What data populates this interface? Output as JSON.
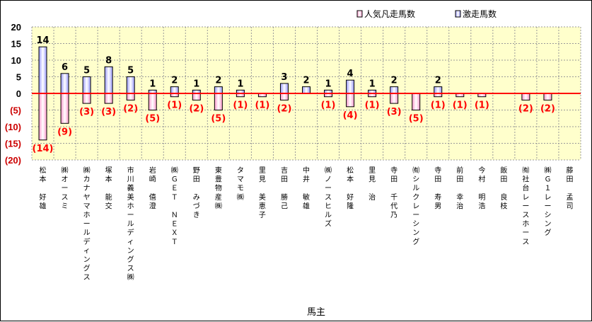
{
  "chart_data": {
    "type": "bar",
    "xlabel": "馬主",
    "ylim": [
      -20,
      20
    ],
    "yticks": [
      "20",
      "15",
      "10",
      "5",
      "0",
      "(5)",
      "(10)",
      "(15)",
      "(20)"
    ],
    "grid": true,
    "legend_position": "top-right",
    "categories": [
      "松本　好雄",
      "㈱オースミ",
      "㈱カナヤマホールディングス",
      "塚本　能交",
      "市川義美ホールディングス㈱",
      "岩崎　僖澄",
      "㈱ＧＥＴ　ＮＥＸＴ",
      "野田　みづき",
      "東豊物産㈱",
      "タマモ㈱",
      "里見　美恵子",
      "吉田　勝己",
      "中井　敏雄",
      "㈱ノースヒルズ",
      "松本　好隆",
      "里見　治",
      "寺田　千代乃",
      "㈲シルクレーシング",
      "寺田　寿男",
      "前田　幸治",
      "今村　明浩",
      "飯田　良枝",
      "㈲社台レースホース",
      "㈱Ｇ１レーシング",
      "藤田　孟司"
    ],
    "series": [
      {
        "name": "人気凡走馬数",
        "color": "#ff99cc",
        "values": [
          -14,
          -9,
          -3,
          -3,
          -2,
          -5,
          -1,
          -2,
          -5,
          -1,
          -1,
          -2,
          0,
          -1,
          -4,
          -1,
          -3,
          -5,
          -1,
          -1,
          -1,
          0,
          -2,
          -2,
          0
        ],
        "labels": [
          "(14)",
          "(9)",
          "(3)",
          "(3)",
          "(2)",
          "(5)",
          "(1)",
          "(2)",
          "(5)",
          "(1)",
          "(1)",
          "(2)",
          "",
          "(1)",
          "(4)",
          "(1)",
          "(3)",
          "(5)",
          "(1)",
          "(1)",
          "(1)",
          "",
          "(2)",
          "(2)",
          ""
        ]
      },
      {
        "name": "激走馬数",
        "color": "#9999ff",
        "values": [
          14,
          6,
          5,
          8,
          5,
          1,
          2,
          1,
          2,
          1,
          0,
          3,
          2,
          1,
          4,
          1,
          2,
          0,
          2,
          0,
          0,
          0,
          0,
          0,
          0
        ],
        "labels": [
          "14",
          "6",
          "5",
          "8",
          "5",
          "1",
          "2",
          "1",
          "2",
          "1",
          "",
          "3",
          "2",
          "1",
          "4",
          "1",
          "2",
          "",
          "2",
          "",
          "",
          "",
          "",
          "",
          ""
        ]
      }
    ],
    "zero_line_color": "#ff0000",
    "plot_background": "#ffffcc"
  }
}
